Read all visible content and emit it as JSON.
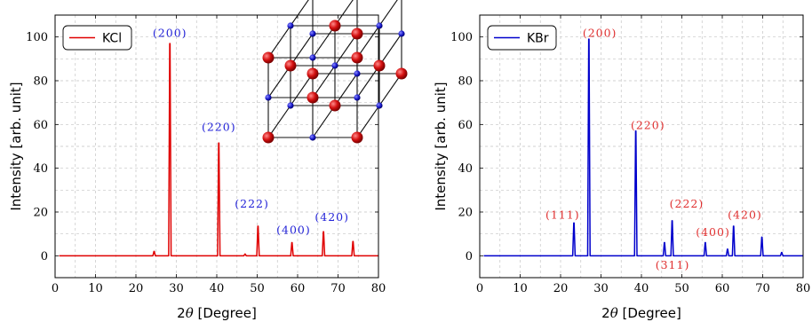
{
  "chart_data": [
    {
      "type": "line",
      "xlabel": "2θ [Degree]",
      "ylabel": "Intensity [arb. unit]",
      "xlim": [
        0,
        80
      ],
      "ylim": [
        -10,
        110
      ],
      "xticks": [
        0,
        10,
        20,
        30,
        40,
        50,
        60,
        70,
        80
      ],
      "yticks": [
        0,
        20,
        40,
        60,
        80,
        100
      ],
      "grid": true,
      "legend_position": "top-left",
      "color": "#e00000",
      "series": [
        {
          "name": "KCl",
          "peaks": [
            [
              24.5,
              2
            ],
            [
              28.4,
              97
            ],
            [
              40.5,
              51.5
            ],
            [
              47.0,
              0.8
            ],
            [
              50.2,
              13.5
            ],
            [
              58.6,
              6
            ],
            [
              66.4,
              11
            ],
            [
              73.7,
              6.5
            ]
          ]
        }
      ],
      "annotations": [
        {
          "text": "(200)",
          "x": 28.4,
          "y": 100
        },
        {
          "text": "(220)",
          "x": 40.5,
          "y": 57
        },
        {
          "text": "(222)",
          "x": 48.7,
          "y": 22
        },
        {
          "text": "(400)",
          "x": 59.0,
          "y": 10
        },
        {
          "text": "(420)",
          "x": 68.5,
          "y": 16
        }
      ],
      "annotation_color": "#2424d8",
      "inset": "crystal-lattice"
    },
    {
      "type": "line",
      "xlabel": "2θ [Degree]",
      "ylabel": "Intensity [arb. unit]",
      "xlim": [
        0,
        80
      ],
      "ylim": [
        -10,
        110
      ],
      "xticks": [
        0,
        10,
        20,
        30,
        40,
        50,
        60,
        70,
        80
      ],
      "yticks": [
        0,
        20,
        40,
        60,
        80,
        100
      ],
      "grid": true,
      "legend_position": "top-left",
      "color": "#0000cc",
      "series": [
        {
          "name": "KBr",
          "peaks": [
            [
              23.3,
              15
            ],
            [
              27.0,
              99
            ],
            [
              38.6,
              57
            ],
            [
              45.7,
              6
            ],
            [
              47.6,
              16
            ],
            [
              55.8,
              6
            ],
            [
              61.3,
              3
            ],
            [
              62.8,
              13.5
            ],
            [
              69.8,
              8.5
            ],
            [
              74.7,
              1.5
            ]
          ]
        }
      ],
      "annotations": [
        {
          "text": "(111)",
          "x": 20.5,
          "y": 17
        },
        {
          "text": "(200)",
          "x": 29.7,
          "y": 100
        },
        {
          "text": "(220)",
          "x": 41.6,
          "y": 58
        },
        {
          "text": "(222)",
          "x": 51.2,
          "y": 22
        },
        {
          "text": "(400)",
          "x": 57.7,
          "y": 9
        },
        {
          "text": "(420)",
          "x": 65.6,
          "y": 17
        },
        {
          "text": "(311)",
          "x": 47.7,
          "y": -6
        }
      ],
      "annotation_color": "#e03030"
    }
  ]
}
